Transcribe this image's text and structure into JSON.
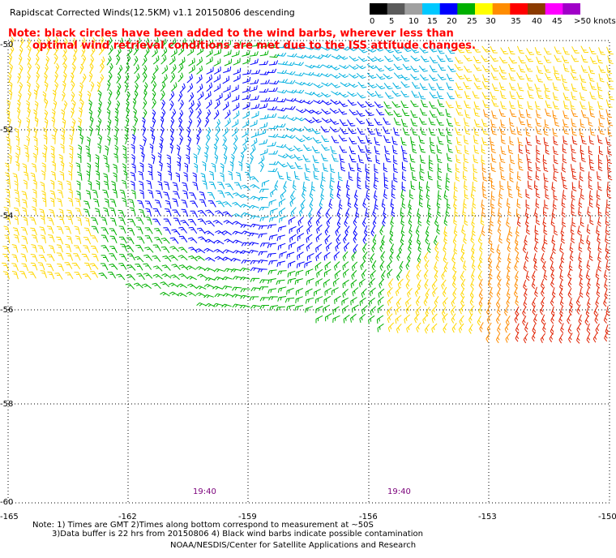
{
  "title": "Rapidscat Corrected Winds(12.5KM) v1.1 20150806 descending",
  "note_line1": "Note: black circles have been added to the wind barbs, wherever less than",
  "note_line2": "optimal wind retrieval conditions are met due to the ISS attitude changes.",
  "legend": {
    "labels": [
      "0",
      "5",
      "10",
      "15",
      "20",
      "25",
      "30",
      "35",
      "40",
      "45",
      ">50 knots"
    ],
    "colors": [
      "#000000",
      "#5a5a5a",
      "#a0a0a0",
      "#00c8ff",
      "#0000ff",
      "#00b000",
      "#ffff00",
      "#ff8c00",
      "#ff0000",
      "#8b3a00",
      "#ff00ff",
      "#a000c8"
    ]
  },
  "lat_labels": [
    "-50",
    "-52",
    "-54",
    "-56",
    "-58",
    "-60"
  ],
  "lon_labels": [
    "-165",
    "-162",
    "-159",
    "-156",
    "-153",
    "-150"
  ],
  "times": [
    "19:40",
    "19:40"
  ],
  "footer_line1": "Note: 1) Times are GMT 2)Times along bottom correspond to measurement at ~50S",
  "footer_line2": "3)Data buffer is 22 hrs from 20150806 4) Black wind barbs indicate possible contamination",
  "footer_line3": "NOAA/NESDIS/Center for Satellite Applications and Research",
  "map_extent": {
    "lon": [
      -165,
      -150
    ],
    "lat": [
      -60,
      -50
    ]
  },
  "wind_colors": {
    "yellow": "#ffd700",
    "orange": "#ff8c00",
    "red": "#e02000",
    "green": "#00b000",
    "blue": "#0000ff",
    "cyan": "#00b0e0"
  }
}
